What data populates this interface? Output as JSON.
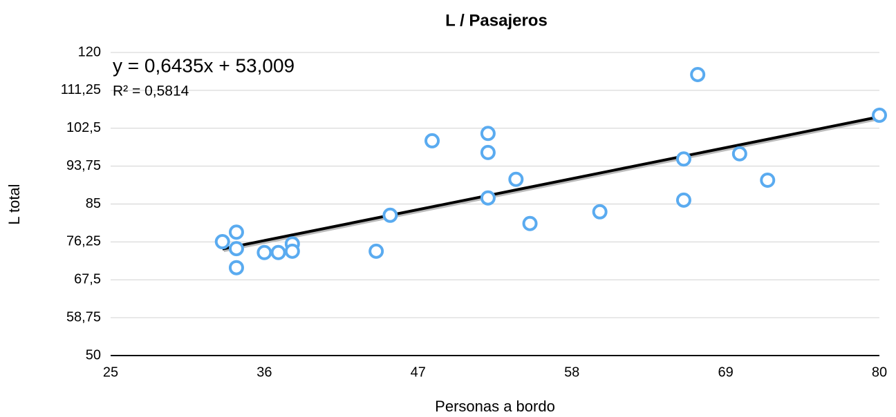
{
  "chart_data": {
    "type": "scatter",
    "title": "L  /  Pasajeros",
    "xlabel": "Personas a bordo",
    "ylabel": "L total",
    "trendline_equation": "y = 0,6435x + 53,009",
    "trendline_r2": "R² = 0,5814",
    "series": [
      {
        "name": "L total",
        "color": "#5aabf0",
        "x": [
          33,
          34,
          34,
          34,
          36,
          37,
          38,
          38,
          44,
          45,
          48,
          52,
          52,
          52,
          54,
          55,
          60,
          66,
          66,
          67,
          70,
          72,
          80
        ],
        "values": [
          76.3,
          78.5,
          74.7,
          70.3,
          73.8,
          73.8,
          75.8,
          74.1,
          74.1,
          82.4,
          99.6,
          101.3,
          96.9,
          86.4,
          90.7,
          80.5,
          83.2,
          95.4,
          85.9,
          114.9,
          96.6,
          90.5,
          105.5
        ]
      }
    ],
    "xlim": [
      25,
      80
    ],
    "xticks": [
      25,
      36,
      47,
      58,
      69,
      80
    ],
    "ylim": [
      50,
      120
    ],
    "yticks": [
      50,
      {
        "value": 58.75,
        "label": "58,75"
      },
      {
        "value": 67.5,
        "label": "67,5"
      },
      {
        "value": 76.25,
        "label": "76,25"
      },
      85,
      {
        "value": 93.75,
        "label": "93,75"
      },
      {
        "value": 102.5,
        "label": "102,5"
      },
      {
        "value": 111.25,
        "label": "111,25"
      },
      120
    ],
    "grid": true,
    "trendline_color": "#000000"
  }
}
